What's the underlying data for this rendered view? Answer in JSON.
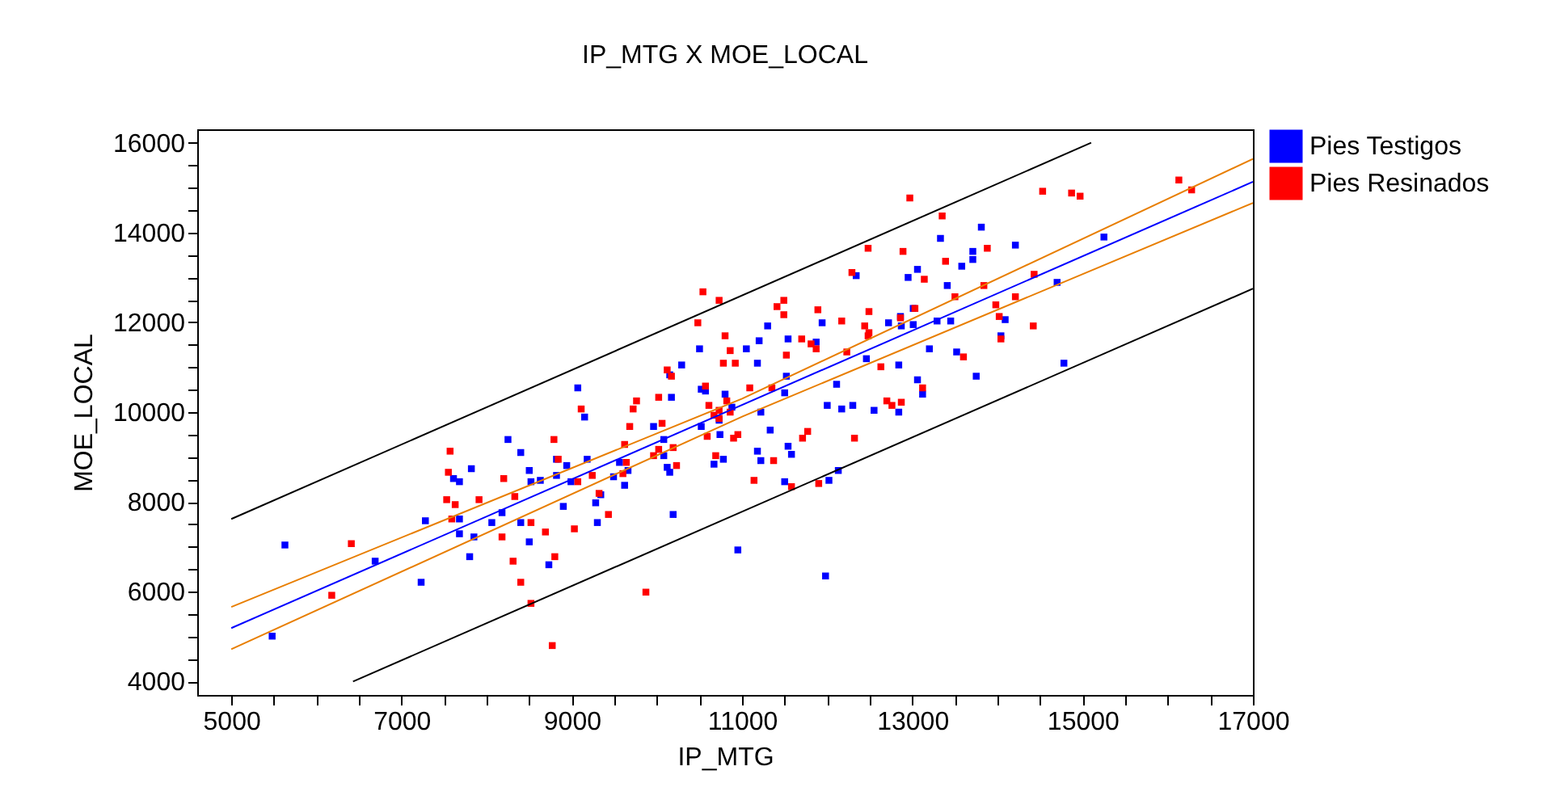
{
  "chart_data": {
    "type": "scatter",
    "title": "IP_MTG X MOE_LOCAL",
    "xlabel": "IP_MTG",
    "ylabel": "MOE_LOCAL",
    "xlim": [
      4600,
      17000
    ],
    "ylim": [
      3700,
      16300
    ],
    "xticks": [
      5000,
      {
        "value": 5500,
        "label": null
      },
      {
        "value": 6000,
        "label": null
      },
      {
        "value": 6500,
        "label": null
      },
      7000,
      {
        "value": 7500,
        "label": null
      },
      {
        "value": 8000,
        "label": null
      },
      {
        "value": 8500,
        "label": null
      },
      9000,
      {
        "value": 9500,
        "label": null
      },
      {
        "value": 10000,
        "label": null
      },
      {
        "value": 10500,
        "label": null
      },
      11000,
      {
        "value": 11500,
        "label": null
      },
      {
        "value": 12000,
        "label": null
      },
      {
        "value": 12500,
        "label": null
      },
      13000,
      {
        "value": 13500,
        "label": null
      },
      {
        "value": 14000,
        "label": null
      },
      {
        "value": 14500,
        "label": null
      },
      15000,
      {
        "value": 15500,
        "label": null
      },
      {
        "value": 16000,
        "label": null
      },
      {
        "value": 16500,
        "label": null
      },
      17000
    ],
    "yticks": [
      4000,
      {
        "value": 4500,
        "label": null
      },
      {
        "value": 5000,
        "label": null
      },
      {
        "value": 5500,
        "label": null
      },
      6000,
      {
        "value": 6500,
        "label": null
      },
      {
        "value": 7000,
        "label": null
      },
      {
        "value": 7500,
        "label": null
      },
      8000,
      {
        "value": 8500,
        "label": null
      },
      {
        "value": 9000,
        "label": null
      },
      {
        "value": 9500,
        "label": null
      },
      10000,
      {
        "value": 10500,
        "label": null
      },
      {
        "value": 11000,
        "label": null
      },
      {
        "value": 11500,
        "label": null
      },
      12000,
      {
        "value": 12500,
        "label": null
      },
      {
        "value": 13000,
        "label": null
      },
      {
        "value": 13500,
        "label": null
      },
      14000,
      {
        "value": 14500,
        "label": null
      },
      {
        "value": 15000,
        "label": null
      },
      {
        "value": 15500,
        "label": null
      },
      16000
    ],
    "grid": false,
    "legend": "right",
    "marker": "square",
    "line_style": "solid",
    "series": [
      {
        "name": "Pies Testigos",
        "type": "scatter",
        "color": "#0000ff",
        "x": [
          5480,
          5630,
          6690,
          7230,
          7280,
          7610,
          7680,
          7680,
          7680,
          7820,
          7850,
          7800,
          8060,
          8180,
          8250,
          8400,
          8400,
          8500,
          8520,
          8500,
          8630,
          8730,
          8820,
          8820,
          8900,
          8940,
          8990,
          9070,
          9150,
          9180,
          9280,
          9300,
          9340,
          9490,
          9560,
          9620,
          9660,
          9960,
          10080,
          10080,
          10120,
          10150,
          10150,
          10170,
          10190,
          10290,
          10500,
          10520,
          10520,
          10570,
          10670,
          10730,
          10740,
          10780,
          10800,
          10880,
          10950,
          11050,
          11180,
          11200,
          11220,
          11180,
          11220,
          11300,
          11330,
          11500,
          11520,
          11540,
          11540,
          11580,
          11500,
          11870,
          11940,
          12000,
          12020,
          12110,
          12130,
          11980,
          12170,
          12300,
          12340,
          12460,
          12550,
          12720,
          12840,
          12840,
          12860,
          12870,
          12950,
          13010,
          13010,
          13060,
          13060,
          13120,
          13200,
          13290,
          13330,
          13410,
          13450,
          13520,
          13580,
          13710,
          13710,
          13750,
          13810,
          14040,
          14090,
          14210,
          14700,
          14780,
          15250
        ],
        "values": [
          5010,
          7040,
          6680,
          6210,
          7580,
          8520,
          8450,
          7620,
          7290,
          8740,
          7220,
          6780,
          7540,
          7760,
          9390,
          9100,
          7540,
          8700,
          8450,
          7110,
          8480,
          6600,
          8950,
          8590,
          7900,
          8810,
          8450,
          10540,
          9890,
          8950,
          7980,
          7540,
          8160,
          8560,
          8880,
          8370,
          8700,
          9680,
          9390,
          9030,
          8770,
          8660,
          10830,
          10330,
          7720,
          11050,
          11410,
          10510,
          9680,
          10470,
          8840,
          9820,
          9500,
          8950,
          10400,
          10110,
          6930,
          11410,
          11090,
          11590,
          10000,
          9130,
          8920,
          11920,
          9600,
          10430,
          10800,
          11630,
          9240,
          9060,
          8450,
          11560,
          11990,
          10150,
          8480,
          10620,
          8700,
          6350,
          10070,
          10150,
          13040,
          11190,
          10040,
          11990,
          11050,
          10000,
          12130,
          11920,
          13000,
          12310,
          11950,
          13180,
          10720,
          10400,
          11410,
          12030,
          13870,
          12820,
          12030,
          11340,
          13250,
          13400,
          13580,
          10800,
          14120,
          11700,
          12060,
          13720,
          12890,
          11090,
          13900
        ]
      },
      {
        "name": "Pies Resinados",
        "type": "scatter",
        "color": "#ff0000",
        "x": [
          6410,
          6180,
          7570,
          7550,
          7530,
          7630,
          7590,
          7910,
          8200,
          8180,
          8330,
          8310,
          8400,
          8520,
          8520,
          8690,
          8790,
          8800,
          8770,
          8840,
          9030,
          9070,
          9110,
          9240,
          9320,
          9430,
          9600,
          9640,
          9620,
          9680,
          9720,
          9760,
          9870,
          9960,
          10020,
          10020,
          10060,
          10120,
          10170,
          10190,
          10230,
          10480,
          10540,
          10570,
          10590,
          10610,
          10690,
          10670,
          10730,
          10730,
          10730,
          10800,
          10780,
          10860,
          10920,
          10860,
          10900,
          10950,
          10820,
          11090,
          11140,
          11350,
          11370,
          11410,
          11490,
          11490,
          11520,
          11700,
          11710,
          11770,
          11810,
          11870,
          11890,
          11900,
          11580,
          12170,
          12230,
          12290,
          12320,
          12440,
          12480,
          12490,
          12490,
          12480,
          12630,
          12700,
          12760,
          12870,
          12860,
          12890,
          12970,
          13030,
          13140,
          13120,
          13350,
          13390,
          13500,
          13600,
          13840,
          13880,
          13980,
          14020,
          14040,
          14210,
          14420,
          14430,
          14530,
          14870,
          14970,
          16130,
          16280
        ],
        "values": [
          7070,
          5920,
          9130,
          8660,
          8050,
          7940,
          7620,
          8050,
          8520,
          7220,
          8120,
          6680,
          6210,
          5740,
          7540,
          7330,
          9390,
          6780,
          4800,
          8950,
          7400,
          8450,
          10070,
          8590,
          8190,
          7720,
          8630,
          8880,
          9280,
          9680,
          10070,
          10250,
          5990,
          9030,
          9170,
          10330,
          9750,
          10940,
          10800,
          9210,
          8810,
          11990,
          12680,
          10580,
          9460,
          10150,
          9030,
          9930,
          9860,
          10040,
          12490,
          11700,
          11090,
          11370,
          11090,
          10000,
          9420,
          9500,
          10250,
          10540,
          8480,
          10540,
          8920,
          12350,
          12490,
          12170,
          11270,
          11630,
          9420,
          9570,
          11520,
          11410,
          12280,
          8410,
          8340,
          12030,
          11340,
          13110,
          9420,
          11920,
          11700,
          11770,
          12240,
          13650,
          11010,
          10250,
          10150,
          10220,
          12100,
          13580,
          14770,
          12310,
          12960,
          10540,
          14370,
          13360,
          12570,
          11230,
          12820,
          13650,
          12390,
          12130,
          11630,
          12570,
          11920,
          13070,
          14920,
          14880,
          14810,
          15170,
          14950
        ]
      },
      {
        "type": "line",
        "marker": "none",
        "color": "#0000ff",
        "x": [
          5000,
          17000
        ],
        "values": [
          5190,
          15130
        ]
      },
      {
        "type": "line",
        "marker": "none",
        "color": "#e87e00",
        "x": [
          5000,
          11000,
          17000
        ],
        "values": [
          5660,
          10300,
          15640
        ]
      },
      {
        "type": "line",
        "marker": "none",
        "color": "#e87e00",
        "x": [
          5000,
          11000,
          17000
        ],
        "values": [
          4720,
          9900,
          14660
        ]
      },
      {
        "type": "line",
        "marker": "none",
        "color": "#000000",
        "x": [
          5000,
          15100
        ],
        "values": [
          7620,
          16000
        ]
      },
      {
        "type": "line",
        "marker": "none",
        "color": "#000000",
        "x": [
          6430,
          17000
        ],
        "values": [
          4000,
          12750
        ]
      }
    ]
  }
}
